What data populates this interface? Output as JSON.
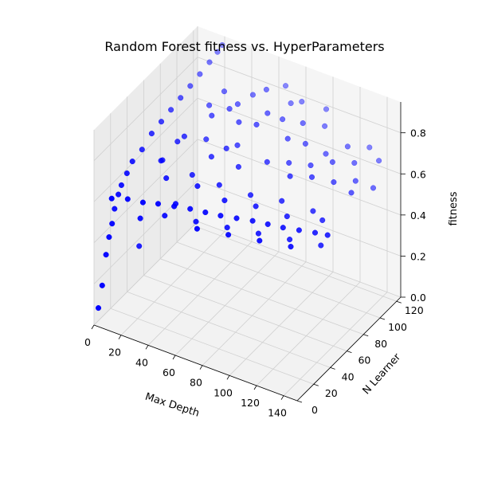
{
  "chart_data": {
    "type": "scatter3d",
    "title": "Random Forest fitness vs. HyperParameters",
    "xlabel": "Max Depth",
    "ylabel": "N Learner",
    "zlabel": "fitness",
    "xlim": [
      0,
      150
    ],
    "ylim": [
      0,
      125
    ],
    "zlim": [
      0,
      0.95
    ],
    "xticks": [
      "0",
      "20",
      "40",
      "60",
      "80",
      "100",
      "120",
      "140"
    ],
    "yticks": [
      "0",
      "20",
      "40",
      "60",
      "80",
      "100",
      "120"
    ],
    "zticks": [
      "0.0",
      "0.2",
      "0.4",
      "0.6",
      "0.8"
    ],
    "grid": true,
    "series": [
      {
        "color": "#0000ff",
        "points": [
          [
            2,
            2,
            0.08
          ],
          [
            3,
            5,
            0.18
          ],
          [
            4,
            8,
            0.32
          ],
          [
            5,
            10,
            0.4
          ],
          [
            6,
            12,
            0.46
          ],
          [
            6,
            15,
            0.52
          ],
          [
            7,
            18,
            0.58
          ],
          [
            8,
            20,
            0.62
          ],
          [
            9,
            25,
            0.66
          ],
          [
            10,
            30,
            0.7
          ],
          [
            11,
            40,
            0.72
          ],
          [
            12,
            50,
            0.76
          ],
          [
            13,
            60,
            0.78
          ],
          [
            14,
            70,
            0.8
          ],
          [
            15,
            80,
            0.82
          ],
          [
            16,
            90,
            0.84
          ],
          [
            17,
            100,
            0.86
          ],
          [
            18,
            110,
            0.88
          ],
          [
            19,
            118,
            0.9
          ],
          [
            20,
            122,
            0.92
          ],
          [
            10,
            5,
            0.62
          ],
          [
            20,
            8,
            0.63
          ],
          [
            30,
            10,
            0.63
          ],
          [
            40,
            12,
            0.64
          ],
          [
            50,
            15,
            0.64
          ],
          [
            60,
            18,
            0.64
          ],
          [
            70,
            20,
            0.64
          ],
          [
            80,
            22,
            0.64
          ],
          [
            90,
            25,
            0.64
          ],
          [
            100,
            28,
            0.64
          ],
          [
            110,
            30,
            0.64
          ],
          [
            120,
            32,
            0.64
          ],
          [
            130,
            35,
            0.64
          ],
          [
            140,
            38,
            0.64
          ],
          [
            148,
            40,
            0.64
          ],
          [
            35,
            100,
            0.82
          ],
          [
            45,
            90,
            0.8
          ],
          [
            55,
            85,
            0.78
          ],
          [
            60,
            110,
            0.85
          ],
          [
            70,
            95,
            0.82
          ],
          [
            80,
            120,
            0.8
          ],
          [
            90,
            105,
            0.78
          ],
          [
            100,
            115,
            0.75
          ],
          [
            110,
            100,
            0.7
          ],
          [
            120,
            110,
            0.72
          ],
          [
            130,
            120,
            0.7
          ],
          [
            140,
            115,
            0.68
          ],
          [
            30,
            60,
            0.75
          ],
          [
            40,
            70,
            0.72
          ],
          [
            50,
            60,
            0.7
          ],
          [
            60,
            75,
            0.72
          ],
          [
            70,
            60,
            0.7
          ],
          [
            85,
            70,
            0.72
          ],
          [
            95,
            80,
            0.7
          ],
          [
            105,
            65,
            0.72
          ],
          [
            115,
            75,
            0.7
          ],
          [
            125,
            85,
            0.66
          ],
          [
            135,
            95,
            0.65
          ],
          [
            25,
            40,
            0.7
          ],
          [
            35,
            30,
            0.68
          ],
          [
            45,
            45,
            0.66
          ],
          [
            55,
            35,
            0.67
          ],
          [
            65,
            45,
            0.66
          ],
          [
            75,
            35,
            0.65
          ],
          [
            85,
            50,
            0.64
          ],
          [
            95,
            40,
            0.65
          ],
          [
            105,
            55,
            0.64
          ],
          [
            115,
            45,
            0.63
          ],
          [
            125,
            60,
            0.62
          ],
          [
            135,
            55,
            0.62
          ],
          [
            40,
            20,
            0.55
          ],
          [
            60,
            25,
            0.55
          ],
          [
            80,
            30,
            0.55
          ],
          [
            100,
            35,
            0.55
          ],
          [
            120,
            40,
            0.55
          ],
          [
            140,
            45,
            0.55
          ],
          [
            20,
            50,
            0.65
          ],
          [
            30,
            90,
            0.78
          ],
          [
            50,
            110,
            0.8
          ],
          [
            65,
            125,
            0.82
          ],
          [
            75,
            115,
            0.8
          ],
          [
            95,
            125,
            0.78
          ],
          [
            15,
            30,
            0.3
          ],
          [
            25,
            15,
            0.52
          ],
          [
            45,
            25,
            0.6
          ],
          [
            70,
            10,
            0.6
          ],
          [
            90,
            15,
            0.6
          ],
          [
            110,
            20,
            0.6
          ],
          [
            130,
            25,
            0.6
          ],
          [
            28,
            55,
            0.74
          ],
          [
            38,
            80,
            0.79
          ],
          [
            48,
            95,
            0.81
          ],
          [
            58,
            65,
            0.74
          ],
          [
            68,
            85,
            0.8
          ],
          [
            78,
            100,
            0.79
          ],
          [
            88,
            90,
            0.76
          ],
          [
            98,
            95,
            0.74
          ],
          [
            108,
            85,
            0.7
          ],
          [
            118,
            95,
            0.7
          ],
          [
            128,
            105,
            0.68
          ],
          [
            138,
            85,
            0.64
          ],
          [
            145,
            100,
            0.62
          ]
        ]
      }
    ]
  }
}
